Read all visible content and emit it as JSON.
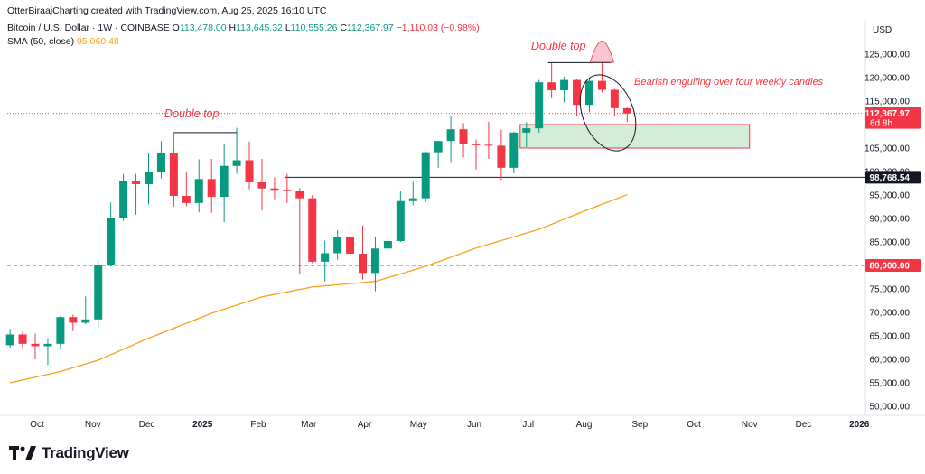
{
  "header": {
    "credit": "OtterBiraajCharting created with TradingView.com, Aug 25, 2025 16:10 UTC",
    "symbol": "Bitcoin / U.S. Dollar · 1W · COINBASE",
    "o_label": "O",
    "o_value": "113,478.00",
    "h_label": "H",
    "h_value": "113,645.32",
    "l_label": "L",
    "l_value": "110,555.26",
    "c_label": "C",
    "c_value": "112,367.97",
    "change": "−1,110.03 (−0.98%)",
    "sma_label": "SMA (50, close)",
    "sma_value": "95,060.48"
  },
  "brand": {
    "name": "TradingView",
    "logo_icon": "tradingview-logo-icon"
  },
  "colors": {
    "up": "#089981",
    "down": "#f23645",
    "sma": "#f7a21b",
    "zone": "#d4edd8",
    "zone_border": "#f23645",
    "annotation": "#f23645"
  },
  "chart_data": {
    "type": "candlestick",
    "currency_label": "USD",
    "ylim": [
      48000,
      130000
    ],
    "y_ticks": [
      50000,
      55000,
      60000,
      65000,
      70000,
      75000,
      80000,
      85000,
      90000,
      95000,
      100000,
      105000,
      110000,
      115000,
      120000,
      125000
    ],
    "y_tick_labels": [
      "50,000.00",
      "55,000.00",
      "60,000.00",
      "65,000.00",
      "70,000.00",
      "75,000.00",
      "80,000.00",
      "85,000.00",
      "90,000.00",
      "95,000.00",
      "100,000.00",
      "105,000.00",
      "110,000.00",
      "115,000.00",
      "120,000.00",
      "125,000.00"
    ],
    "x_ticks": [
      {
        "label": "Oct",
        "date": "2024-10-01",
        "bold": false
      },
      {
        "label": "Nov",
        "date": "2024-11-01",
        "bold": false
      },
      {
        "label": "Dec",
        "date": "2024-12-01",
        "bold": false
      },
      {
        "label": "2025",
        "date": "2025-01-01",
        "bold": true
      },
      {
        "label": "Feb",
        "date": "2025-02-01",
        "bold": false
      },
      {
        "label": "Mar",
        "date": "2025-03-01",
        "bold": false
      },
      {
        "label": "Apr",
        "date": "2025-04-01",
        "bold": false
      },
      {
        "label": "May",
        "date": "2025-05-01",
        "bold": false
      },
      {
        "label": "Jun",
        "date": "2025-06-01",
        "bold": false
      },
      {
        "label": "Jul",
        "date": "2025-07-01",
        "bold": false
      },
      {
        "label": "Aug",
        "date": "2025-08-01",
        "bold": false
      },
      {
        "label": "Sep",
        "date": "2025-09-01",
        "bold": false
      },
      {
        "label": "Oct",
        "date": "2025-10-01",
        "bold": false
      },
      {
        "label": "Nov",
        "date": "2025-11-01",
        "bold": false
      },
      {
        "label": "Dec",
        "date": "2025-12-01",
        "bold": false
      },
      {
        "label": "2026",
        "date": "2026-01-01",
        "bold": true
      }
    ],
    "candles": [
      {
        "date": "2024-09-16",
        "o": 63000,
        "h": 66500,
        "l": 62500,
        "c": 65300
      },
      {
        "date": "2024-09-23",
        "o": 65300,
        "h": 66000,
        "l": 62000,
        "c": 63300
      },
      {
        "date": "2024-09-30",
        "o": 63300,
        "h": 65500,
        "l": 60000,
        "c": 62800
      },
      {
        "date": "2024-10-07",
        "o": 62800,
        "h": 64500,
        "l": 58800,
        "c": 63300
      },
      {
        "date": "2024-10-14",
        "o": 63300,
        "h": 69200,
        "l": 62300,
        "c": 69000
      },
      {
        "date": "2024-10-21",
        "o": 69000,
        "h": 69500,
        "l": 66000,
        "c": 67800
      },
      {
        "date": "2024-10-28",
        "o": 67800,
        "h": 73400,
        "l": 67500,
        "c": 68500
      },
      {
        "date": "2024-11-04",
        "o": 68500,
        "h": 81000,
        "l": 66800,
        "c": 80000
      },
      {
        "date": "2024-11-11",
        "o": 80000,
        "h": 93400,
        "l": 79800,
        "c": 90000
      },
      {
        "date": "2024-11-18",
        "o": 90000,
        "h": 99500,
        "l": 89500,
        "c": 98000
      },
      {
        "date": "2024-11-25",
        "o": 98000,
        "h": 99500,
        "l": 90800,
        "c": 97300
      },
      {
        "date": "2024-12-02",
        "o": 97300,
        "h": 104000,
        "l": 93000,
        "c": 100000
      },
      {
        "date": "2024-12-09",
        "o": 100000,
        "h": 106500,
        "l": 98500,
        "c": 104000
      },
      {
        "date": "2024-12-16",
        "o": 104000,
        "h": 108300,
        "l": 92500,
        "c": 94800
      },
      {
        "date": "2024-12-23",
        "o": 94800,
        "h": 99900,
        "l": 92600,
        "c": 93300
      },
      {
        "date": "2024-12-30",
        "o": 93300,
        "h": 102600,
        "l": 91300,
        "c": 98400
      },
      {
        "date": "2025-01-06",
        "o": 98400,
        "h": 102700,
        "l": 91200,
        "c": 94600
      },
      {
        "date": "2025-01-13",
        "o": 94600,
        "h": 106000,
        "l": 89200,
        "c": 101200
      },
      {
        "date": "2025-01-20",
        "o": 101200,
        "h": 109300,
        "l": 99500,
        "c": 102400
      },
      {
        "date": "2025-01-27",
        "o": 102400,
        "h": 106400,
        "l": 96200,
        "c": 97700
      },
      {
        "date": "2025-02-03",
        "o": 97700,
        "h": 102700,
        "l": 91700,
        "c": 96400
      },
      {
        "date": "2025-02-10",
        "o": 96400,
        "h": 98800,
        "l": 94100,
        "c": 96100
      },
      {
        "date": "2025-02-17",
        "o": 96100,
        "h": 99500,
        "l": 93300,
        "c": 95800
      },
      {
        "date": "2025-02-24",
        "o": 95800,
        "h": 96500,
        "l": 78200,
        "c": 94300
      },
      {
        "date": "2025-03-03",
        "o": 94300,
        "h": 95000,
        "l": 80500,
        "c": 80800
      },
      {
        "date": "2025-03-10",
        "o": 80800,
        "h": 85300,
        "l": 76600,
        "c": 82600
      },
      {
        "date": "2025-03-17",
        "o": 82600,
        "h": 87500,
        "l": 81200,
        "c": 86000
      },
      {
        "date": "2025-03-24",
        "o": 86000,
        "h": 88700,
        "l": 81600,
        "c": 82500
      },
      {
        "date": "2025-03-31",
        "o": 82500,
        "h": 88500,
        "l": 77000,
        "c": 78400
      },
      {
        "date": "2025-04-07",
        "o": 78400,
        "h": 86100,
        "l": 74500,
        "c": 83600
      },
      {
        "date": "2025-04-14",
        "o": 83600,
        "h": 86500,
        "l": 83000,
        "c": 85200
      },
      {
        "date": "2025-04-21",
        "o": 85200,
        "h": 95800,
        "l": 85000,
        "c": 93700
      },
      {
        "date": "2025-04-28",
        "o": 93700,
        "h": 97800,
        "l": 92800,
        "c": 94300
      },
      {
        "date": "2025-05-05",
        "o": 94300,
        "h": 104300,
        "l": 93500,
        "c": 104100
      },
      {
        "date": "2025-05-12",
        "o": 104100,
        "h": 105700,
        "l": 100800,
        "c": 106500
      },
      {
        "date": "2025-05-19",
        "o": 106500,
        "h": 111900,
        "l": 102000,
        "c": 109000
      },
      {
        "date": "2025-05-26",
        "o": 109000,
        "h": 110300,
        "l": 103000,
        "c": 105800
      },
      {
        "date": "2025-06-02",
        "o": 105800,
        "h": 106800,
        "l": 100400,
        "c": 105700
      },
      {
        "date": "2025-06-09",
        "o": 105700,
        "h": 110600,
        "l": 102700,
        "c": 105500
      },
      {
        "date": "2025-06-16",
        "o": 105500,
        "h": 108900,
        "l": 98200,
        "c": 100800
      },
      {
        "date": "2025-06-23",
        "o": 100800,
        "h": 108500,
        "l": 99600,
        "c": 108300
      },
      {
        "date": "2025-06-30",
        "o": 108300,
        "h": 110500,
        "l": 105200,
        "c": 109200
      },
      {
        "date": "2025-07-07",
        "o": 109200,
        "h": 119500,
        "l": 108300,
        "c": 119000
      },
      {
        "date": "2025-07-14",
        "o": 119000,
        "h": 123200,
        "l": 115800,
        "c": 117300
      },
      {
        "date": "2025-07-21",
        "o": 117300,
        "h": 120200,
        "l": 114700,
        "c": 119500
      },
      {
        "date": "2025-07-28",
        "o": 119500,
        "h": 119800,
        "l": 111900,
        "c": 114200
      },
      {
        "date": "2025-08-04",
        "o": 114200,
        "h": 120000,
        "l": 112600,
        "c": 119300
      },
      {
        "date": "2025-08-11",
        "o": 119300,
        "h": 124400,
        "l": 116800,
        "c": 117400
      },
      {
        "date": "2025-08-18",
        "o": 117400,
        "h": 117600,
        "l": 111700,
        "c": 113500
      },
      {
        "date": "2025-08-25",
        "o": 113478,
        "h": 113645.32,
        "l": 110555.26,
        "c": 112367.97
      }
    ],
    "sma": {
      "name": "SMA (50, close)",
      "points": [
        {
          "date": "2024-09-16",
          "v": 55000
        },
        {
          "date": "2024-10-14",
          "v": 57400
        },
        {
          "date": "2024-11-04",
          "v": 59800
        },
        {
          "date": "2024-12-02",
          "v": 64500
        },
        {
          "date": "2025-01-06",
          "v": 69800
        },
        {
          "date": "2025-02-03",
          "v": 73300
        },
        {
          "date": "2025-03-03",
          "v": 75400
        },
        {
          "date": "2025-04-07",
          "v": 76600
        },
        {
          "date": "2025-05-05",
          "v": 79800
        },
        {
          "date": "2025-06-02",
          "v": 83700
        },
        {
          "date": "2025-07-07",
          "v": 87700
        },
        {
          "date": "2025-08-04",
          "v": 92000
        },
        {
          "date": "2025-08-25",
          "v": 95060.48
        }
      ]
    },
    "price_labels": {
      "last": {
        "value": 112367.97,
        "text": "112,367.97",
        "countdown": "6d 8h"
      },
      "support": {
        "value": 98768.54,
        "text": "98,768.54"
      },
      "level_80k": {
        "value": 80000,
        "text": "80,000.00"
      }
    },
    "annotations": {
      "double_top_left": {
        "text": "Double top",
        "date_from": "2024-12-16",
        "date_to": "2025-01-20",
        "value": 108300
      },
      "double_top_right": {
        "text": "Double top",
        "date_from": "2025-07-14",
        "date_to": "2025-08-11",
        "value": 123200
      },
      "engulfing": {
        "text": "Bearish engulfing over four weekly candles"
      },
      "support_line": {
        "date_from": "2025-02-17",
        "value": 98768.54
      },
      "zone": {
        "date_from": "2025-06-30",
        "date_to": "2025-11-01",
        "top": 110000,
        "bottom": 105000
      }
    }
  }
}
